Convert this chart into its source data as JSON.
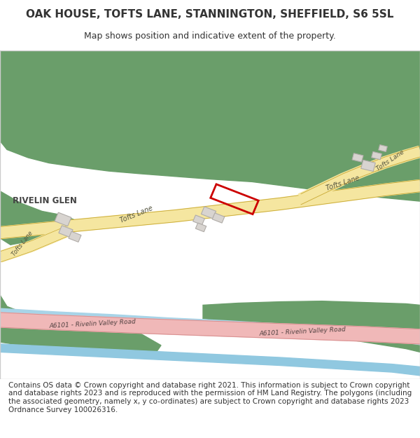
{
  "title": "OAK HOUSE, TOFTS LANE, STANNINGTON, SHEFFIELD, S6 5SL",
  "subtitle": "Map shows position and indicative extent of the property.",
  "footer": "Contains OS data © Crown copyright and database right 2021. This information is subject to Crown copyright and database rights 2023 and is reproduced with the permission of HM Land Registry. The polygons (including the associated geometry, namely x, y co-ordinates) are subject to Crown copyright and database rights 2023 Ordnance Survey 100026316.",
  "bg_color": "#ffffff",
  "map_bg": "#f0eeec",
  "green_color": "#6a9e6a",
  "road_yellow": "#f5e6a0",
  "road_border": "#c8a832",
  "road_pink": "#f0b8b8",
  "road_pink_border": "#d89090",
  "building_color": "#d8d4d0",
  "building_border": "#b0aca8",
  "water_color": "#a8d4e8",
  "water_color2": "#90c8e0",
  "property_border": "#cc0000",
  "text_color": "#333333",
  "road_label_color": "#555540",
  "a6101_label_color": "#554444",
  "title_fontsize": 11,
  "subtitle_fontsize": 9,
  "footer_fontsize": 7.5
}
